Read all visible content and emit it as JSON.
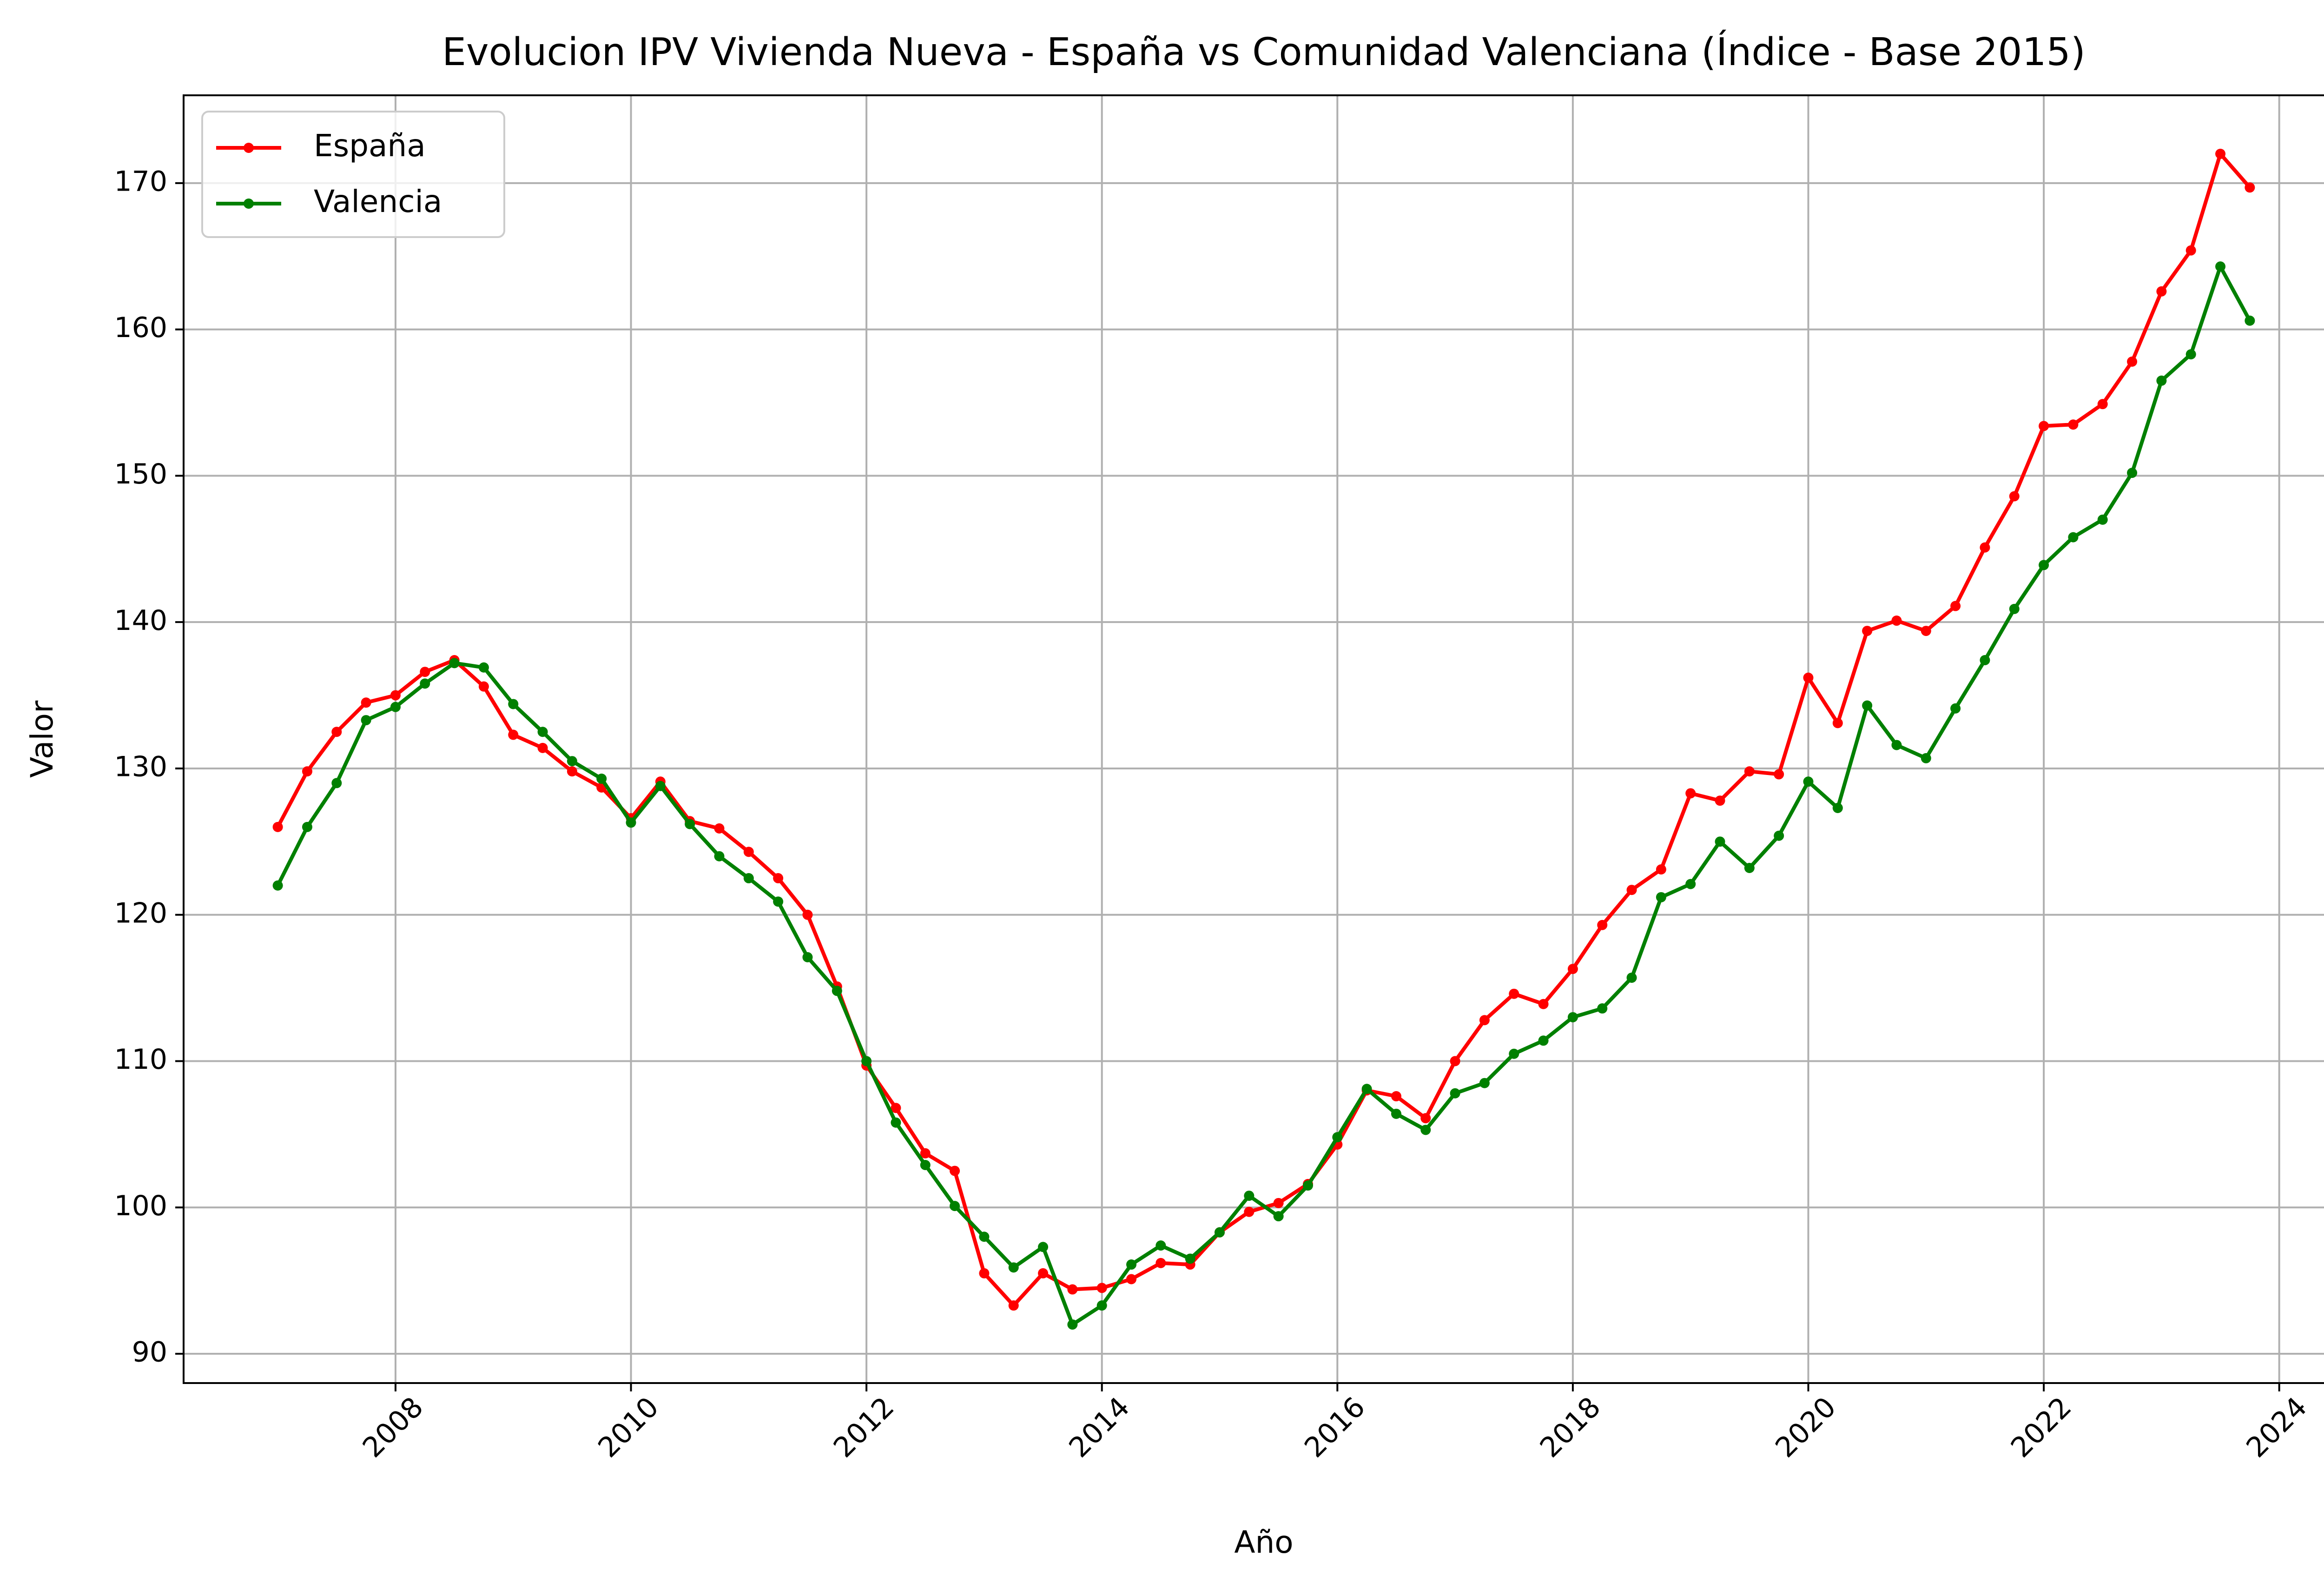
{
  "chart_data": {
    "type": "line",
    "title": "Evolucion IPV Vivienda Nueva -  España vs Comunidad Valenciana (Índice - Base 2015)",
    "xlabel": "Año",
    "ylabel": "Valor",
    "xlim": [
      2006.2,
      2024.55
    ],
    "ylim": [
      88,
      176
    ],
    "x_ticks": [
      2008,
      2010,
      2012,
      2014,
      2016,
      2018,
      2020,
      2022,
      2024
    ],
    "y_ticks": [
      90,
      100,
      110,
      120,
      130,
      140,
      150,
      160,
      170
    ],
    "grid": true,
    "legend_position": "upper-left",
    "x": [
      2007.0,
      2007.25,
      2007.5,
      2007.75,
      2008.0,
      2008.25,
      2008.5,
      2008.75,
      2009.0,
      2009.25,
      2009.5,
      2009.75,
      2010.0,
      2010.25,
      2010.5,
      2010.75,
      2011.0,
      2011.25,
      2011.5,
      2011.75,
      2012.0,
      2012.25,
      2012.5,
      2012.75,
      2013.0,
      2013.25,
      2013.5,
      2013.75,
      2014.0,
      2014.25,
      2014.5,
      2014.75,
      2015.0,
      2015.25,
      2015.5,
      2015.75,
      2016.0,
      2016.25,
      2016.5,
      2016.75,
      2017.0,
      2017.25,
      2017.5,
      2017.75,
      2018.0,
      2018.25,
      2018.5,
      2018.75,
      2019.0,
      2019.25,
      2019.5,
      2019.75,
      2020.0,
      2020.25,
      2020.5,
      2020.75,
      2021.0,
      2021.25,
      2021.5,
      2021.75,
      2022.0,
      2022.25,
      2022.5,
      2022.75,
      2023.0,
      2023.25,
      2023.5,
      2023.75
    ],
    "series": [
      {
        "name": "España",
        "color": "#ff0000",
        "values": [
          126.0,
          129.8,
          132.5,
          134.5,
          135.0,
          136.6,
          137.4,
          135.6,
          132.3,
          131.4,
          129.8,
          128.7,
          126.6,
          129.1,
          126.4,
          125.9,
          124.3,
          122.5,
          120.0,
          115.1,
          109.7,
          106.8,
          103.7,
          102.5,
          95.5,
          93.3,
          95.5,
          94.4,
          94.5,
          95.1,
          96.2,
          96.1,
          98.3,
          99.7,
          100.3,
          101.6,
          104.3,
          108.0,
          107.6,
          106.1,
          110.0,
          112.8,
          114.6,
          113.9,
          116.3,
          119.3,
          121.7,
          123.1,
          128.3,
          127.8,
          129.8,
          129.6,
          136.2,
          133.1,
          139.4,
          140.1,
          139.4,
          141.1,
          145.1,
          148.6,
          153.4,
          153.5,
          154.9,
          157.8,
          162.6,
          165.4,
          172.0,
          169.7
        ]
      },
      {
        "name": "Valencia",
        "color": "#008000",
        "values": [
          122.0,
          126.0,
          129.0,
          133.3,
          134.2,
          135.8,
          137.2,
          136.9,
          134.4,
          132.5,
          130.5,
          129.3,
          126.3,
          128.8,
          126.2,
          124.0,
          122.5,
          120.9,
          117.1,
          114.8,
          110.0,
          105.8,
          102.9,
          100.1,
          98.0,
          95.9,
          97.3,
          92.0,
          93.3,
          96.1,
          97.4,
          96.5,
          98.3,
          100.8,
          99.4,
          101.5,
          104.8,
          108.1,
          106.4,
          105.3,
          107.8,
          108.5,
          110.5,
          111.4,
          113.0,
          113.6,
          115.7,
          121.2,
          122.1,
          125.0,
          123.2,
          125.4,
          129.1,
          127.3,
          134.3,
          131.6,
          130.7,
          134.1,
          137.4,
          140.9,
          143.9,
          145.8,
          147.0,
          150.2,
          156.5,
          158.3,
          164.3,
          160.6
        ]
      }
    ]
  }
}
